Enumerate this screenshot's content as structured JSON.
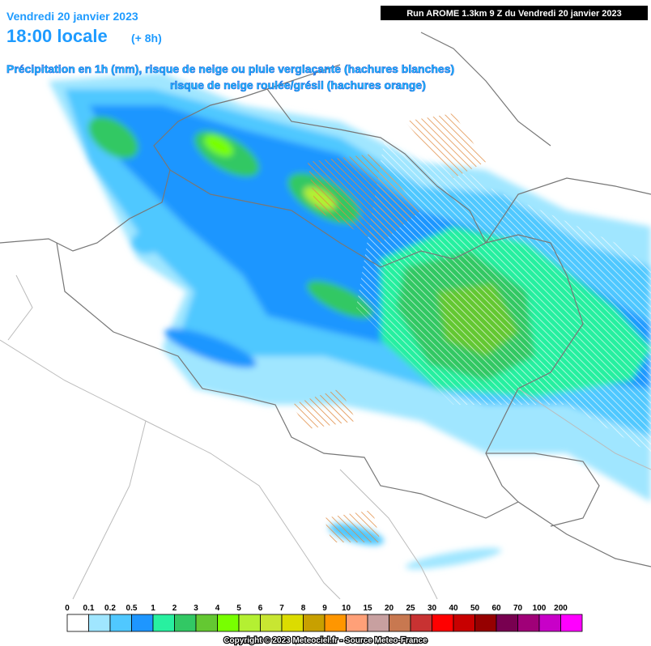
{
  "header": {
    "date": "Vendredi 20 janvier 2023",
    "time": "18:00 locale",
    "offset": "(+ 8h)",
    "run": "Run AROME 1.3km 9 Z du Vendredi 20 janvier 2023",
    "description_1": "Précipitation en 1h (mm), risque de neige ou pluie verglaçante (hachures blanches)",
    "description_2": "risque de neige roulée/grésil (hachures orange)"
  },
  "legend": {
    "labels": [
      "0",
      "0.1",
      "0.2",
      "0.5",
      "1",
      "2",
      "3",
      "4",
      "5",
      "6",
      "7",
      "8",
      "9",
      "10",
      "15",
      "20",
      "25",
      "30",
      "40",
      "50",
      "60",
      "70",
      "100",
      "200"
    ]
  },
  "footer": {
    "copyright": "Copyright © 2023 Meteociel.fr - Source Meteo-France"
  }
}
